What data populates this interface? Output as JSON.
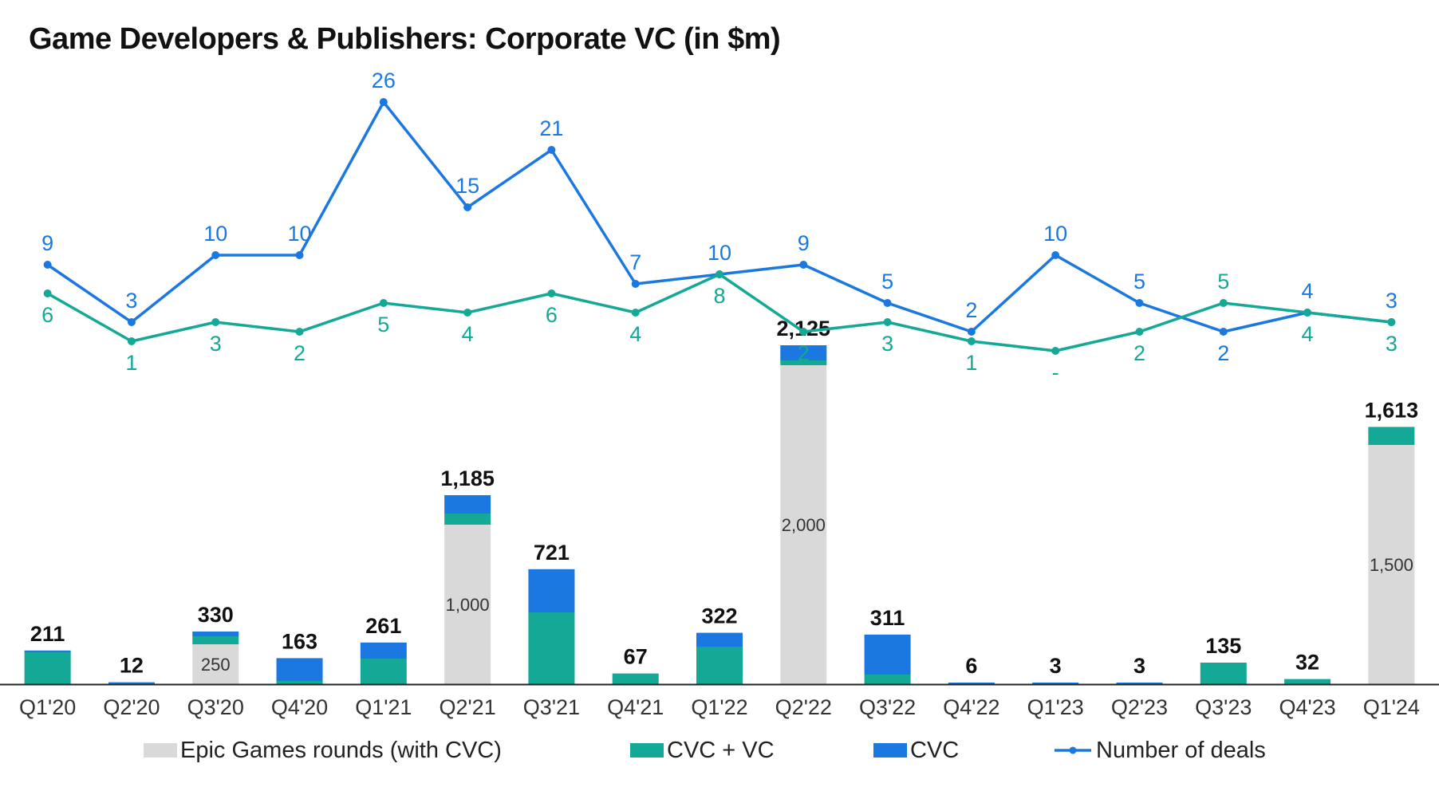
{
  "title": "Game Developers & Publishers: Corporate VC (in $m)",
  "colors": {
    "epic": "#d9d9d9",
    "cvc_vc": "#14a896",
    "cvc": "#1a78e0",
    "deals_cvc": "#1a78e0",
    "deals_cvc_vc": "#14a896",
    "axis": "#222222"
  },
  "chart_data": {
    "type": "bar",
    "title": "Game Developers & Publishers: Corporate VC (in $m)",
    "categories": [
      "Q1'20",
      "Q2'20",
      "Q3'20",
      "Q4'20",
      "Q1'21",
      "Q2'21",
      "Q3'21",
      "Q4'21",
      "Q1'22",
      "Q2'22",
      "Q3'22",
      "Q4'22",
      "Q1'23",
      "Q2'23",
      "Q3'23",
      "Q4'23",
      "Q1'24"
    ],
    "stacked": true,
    "series": [
      {
        "name": "Epic Games rounds (with CVC)",
        "values": [
          0,
          0,
          250,
          0,
          0,
          1000,
          0,
          0,
          0,
          2000,
          0,
          0,
          0,
          0,
          0,
          0,
          1500
        ]
      },
      {
        "name": "CVC + VC",
        "values": [
          200,
          0,
          50,
          20,
          160,
          70,
          450,
          67,
          232,
          30,
          60,
          0,
          0,
          0,
          135,
          32,
          113
        ]
      },
      {
        "name": "CVC",
        "values": [
          11,
          12,
          30,
          143,
          101,
          115,
          271,
          0,
          90,
          95,
          251,
          6,
          3,
          3,
          0,
          0,
          0
        ]
      }
    ],
    "totals": [
      "211",
      "12",
      "330",
      "163",
      "261",
      "1,185",
      "721",
      "67",
      "322",
      "2,125",
      "311",
      "6",
      "3",
      "3",
      "135",
      "32",
      "1,613"
    ],
    "inner_labels": [
      "",
      "",
      "250",
      "",
      "",
      "1,000",
      "",
      "",
      "",
      "2,000",
      "",
      "",
      "",
      "",
      "",
      "",
      "1,500"
    ],
    "deals": [
      {
        "name": "Number of deals",
        "series_key": "cvc",
        "values": [
          9,
          3,
          10,
          10,
          26,
          15,
          21,
          7,
          null,
          9,
          5,
          2,
          10,
          5,
          2,
          4,
          3
        ],
        "labels": [
          "9",
          "3",
          "10",
          "10",
          "26",
          "15",
          "21",
          "7",
          "10",
          "9",
          "5",
          "2",
          "10",
          "5",
          "2",
          "4",
          "3"
        ]
      },
      {
        "series_key": "cvc_vc",
        "values": [
          6,
          1,
          3,
          2,
          5,
          4,
          6,
          4,
          8,
          2,
          3,
          1,
          0,
          2,
          5,
          4,
          3
        ],
        "labels": [
          "6",
          "1",
          "3",
          "2",
          "5",
          "4",
          "6",
          "4",
          "8",
          "2",
          "3",
          "1",
          "-",
          "2",
          "5",
          "4",
          "3"
        ]
      }
    ],
    "legend": [
      "Epic Games rounds (with CVC)",
      "CVC + VC",
      "CVC",
      "Number of deals"
    ],
    "legend_position": "bottom",
    "grid": false
  }
}
